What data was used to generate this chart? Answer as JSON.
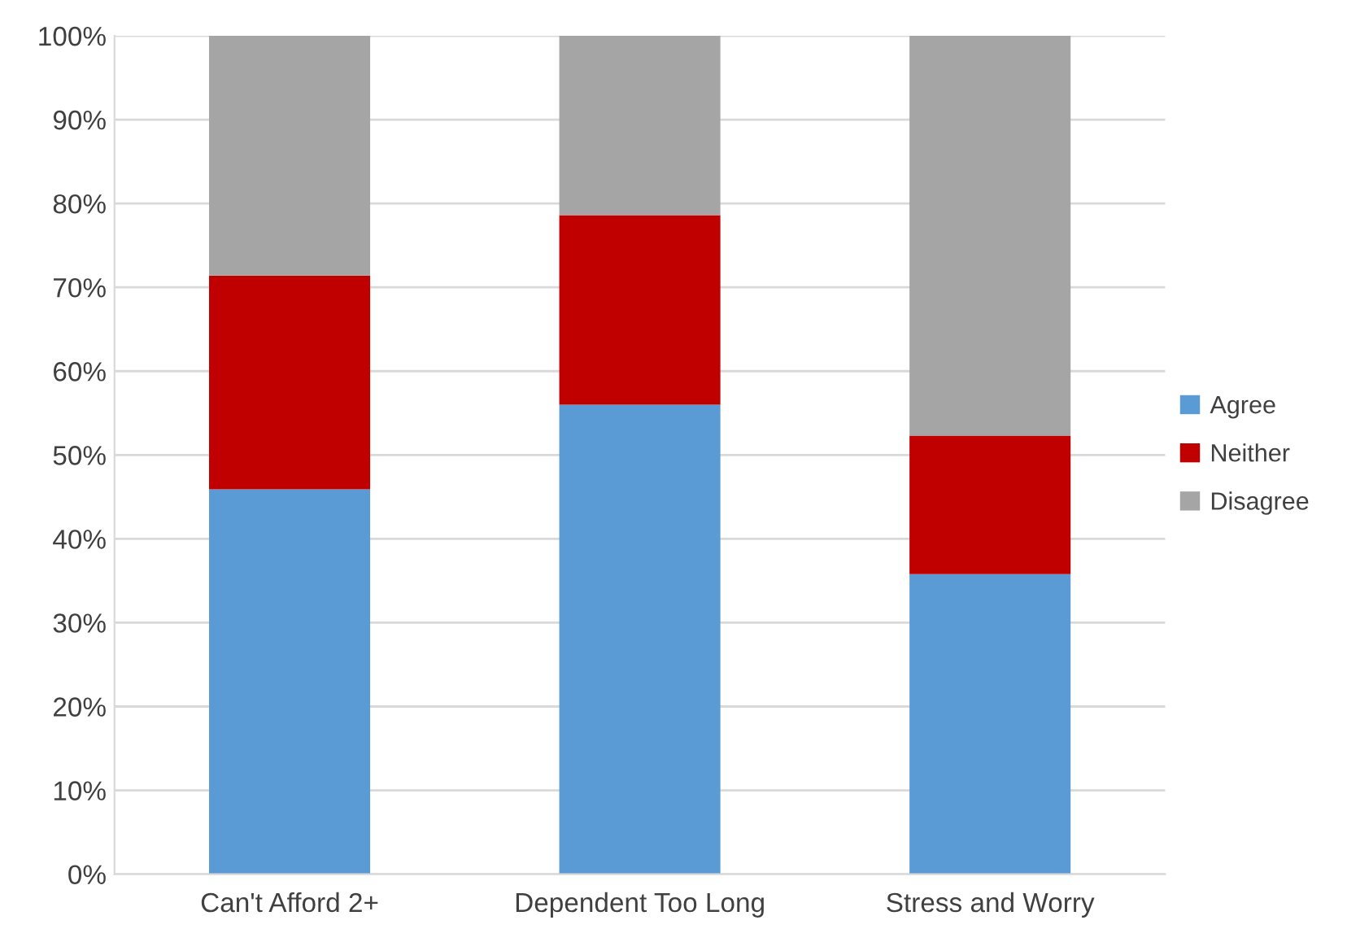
{
  "chart_data": {
    "type": "bar",
    "stacked": true,
    "categories": [
      "Can't Afford 2+",
      "Dependent Too Long",
      "Stress and Worry"
    ],
    "series": [
      {
        "name": "Agree",
        "color": "#5b9bd5",
        "values": [
          45.9,
          56.0,
          35.8
        ]
      },
      {
        "name": "Neither",
        "color": "#c00000",
        "values": [
          25.5,
          22.6,
          16.5
        ]
      },
      {
        "name": "Disagree",
        "color": "#a5a5a5",
        "values": [
          28.6,
          21.4,
          47.7
        ]
      }
    ],
    "ylim": [
      0,
      100
    ],
    "yticks": [
      {
        "value": 0,
        "label": "0%"
      },
      {
        "value": 10,
        "label": "10%"
      },
      {
        "value": 20,
        "label": "20%"
      },
      {
        "value": 30,
        "label": "30%"
      },
      {
        "value": 40,
        "label": "40%"
      },
      {
        "value": 50,
        "label": "50%"
      },
      {
        "value": 60,
        "label": "60%"
      },
      {
        "value": 70,
        "label": "70%"
      },
      {
        "value": 80,
        "label": "80%"
      },
      {
        "value": 90,
        "label": "90%"
      },
      {
        "value": 100,
        "label": "100%"
      }
    ],
    "grid": "y",
    "legend": "right"
  }
}
